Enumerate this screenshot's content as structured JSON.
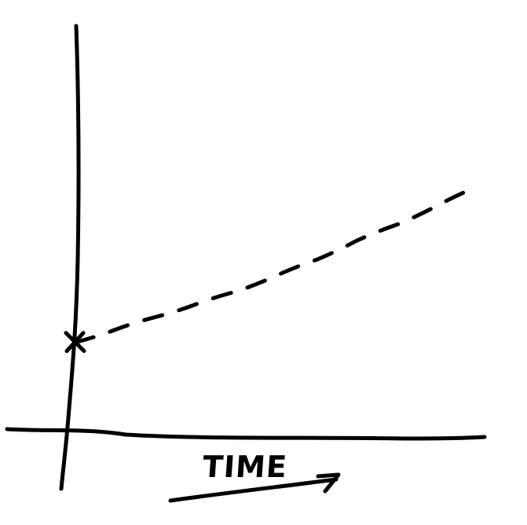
{
  "chart_data": {
    "type": "line",
    "title": "",
    "xlabel": "TIME",
    "ylabel": "",
    "grid": false,
    "legend": "none",
    "style": "hand-drawn",
    "line_color": "#000000",
    "x": [
      0,
      1,
      2,
      3,
      4,
      5,
      6,
      7,
      8,
      9,
      10
    ],
    "series": [
      {
        "values": [
          0.25,
          0.29,
          0.33,
          0.37,
          0.41,
          0.46,
          0.51,
          0.57,
          0.62,
          0.68,
          0.74
        ],
        "dash": "dashed"
      }
    ],
    "start_marker": "cross",
    "xlim": [
      0,
      10
    ],
    "ylim": [
      -0.03,
      1
    ]
  }
}
